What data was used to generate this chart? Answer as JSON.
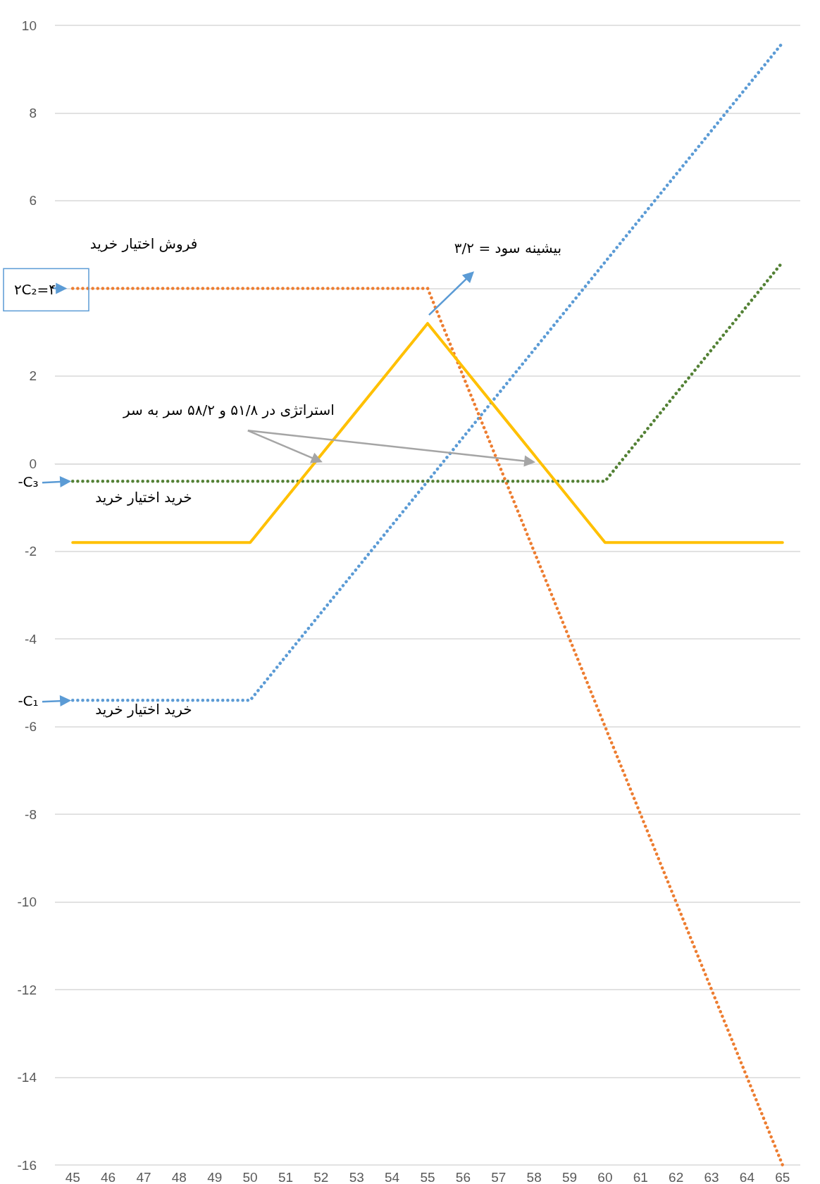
{
  "chart_data": {
    "type": "line",
    "categories": [
      "45",
      "46",
      "47",
      "48",
      "49",
      "50",
      "51",
      "52",
      "53",
      "54",
      "55",
      "56",
      "57",
      "58",
      "59",
      "60",
      "61",
      "62",
      "63",
      "64",
      "65"
    ],
    "series": [
      {
        "name": "خرید اختیار خرید",
        "color": "#5b9bd5",
        "line_style": "dotted",
        "values": [
          -5.4,
          -5.4,
          -5.4,
          -5.4,
          -5.4,
          -5.4,
          -4.4,
          -3.4,
          -2.4,
          -1.4,
          -0.4,
          0.6,
          1.6,
          2.6,
          3.6,
          4.6,
          5.6,
          6.6,
          7.6,
          8.6,
          9.6
        ]
      },
      {
        "name": "فروش اختیار خرید",
        "color": "#ed7d31",
        "line_style": "dotted",
        "values": [
          4,
          4,
          4,
          4,
          4,
          4,
          4,
          4,
          4,
          4,
          4,
          2,
          0,
          -2,
          -4,
          -6,
          -8,
          -10,
          -12,
          -14,
          -16
        ]
      },
      {
        "name": "خرید اختیار خرید",
        "color": "#538135",
        "line_style": "dotted",
        "values": [
          -0.4,
          -0.4,
          -0.4,
          -0.4,
          -0.4,
          -0.4,
          -0.4,
          -0.4,
          -0.4,
          -0.4,
          -0.4,
          -0.4,
          -0.4,
          -0.4,
          -0.4,
          -0.4,
          0.6,
          1.6,
          2.6,
          3.6,
          4.6
        ]
      },
      {
        "color": "#ffc000",
        "line_style": "solid",
        "values": [
          -1.8,
          -1.8,
          -1.8,
          -1.8,
          -1.8,
          -1.8,
          -0.8,
          0.2,
          1.2,
          2.2,
          3.2,
          2.2,
          1.2,
          0.2,
          -0.8,
          -1.8,
          -1.8,
          -1.8,
          -1.8,
          -1.8,
          -1.8
        ]
      }
    ],
    "ylim": [
      -16,
      10
    ],
    "yticks": [
      -16,
      -14,
      -12,
      -10,
      -8,
      -6,
      -4,
      -2,
      0,
      2,
      {
        "value": 4,
        "label": null
      },
      6,
      8,
      10
    ],
    "grid": "y",
    "marker": "none",
    "annotations": [
      {
        "text": "۲C₂=۴",
        "x": "45",
        "y": 4
      },
      {
        "text": "-C₃",
        "x": "45",
        "y": -0.4
      },
      {
        "text": "-C₁",
        "x": "45",
        "y": -5.4
      },
      "بیشینه سود = ۳/۲",
      "استراتژی در ۵۱/۸ و ۵۸/۲  سر به سر"
    ]
  }
}
